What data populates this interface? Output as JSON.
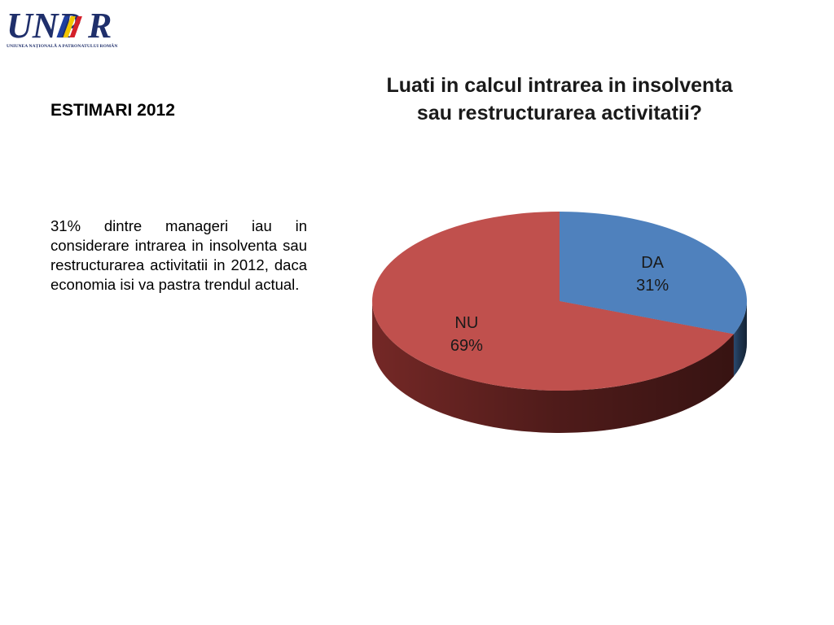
{
  "header": {
    "logo_text": "UNPR",
    "logo_caption": "UNIUNEA NAȚIONALĂ A PATRONATULUI ROMÂN"
  },
  "left_panel": {
    "title": "ESTIMARI 2012",
    "paragraph": "31% dintre manageri iau in considerare intrarea in insolventa sau restructurarea activitatii in 2012, daca economia isi va pastra trendul actual."
  },
  "chart_data": {
    "type": "pie",
    "title_lines": [
      "Luati in calcul intrarea in insolventa",
      "sau restructurarea activitatii?"
    ],
    "style": "3d",
    "legend": "none",
    "slices": [
      {
        "label": "DA",
        "value": 31,
        "display": "31%",
        "color": "#4f81bd",
        "side_color": "#2c4d75"
      },
      {
        "label": "NU",
        "value": 69,
        "display": "69%",
        "color": "#c0504d",
        "side_color": "#7a2a28"
      }
    ]
  }
}
